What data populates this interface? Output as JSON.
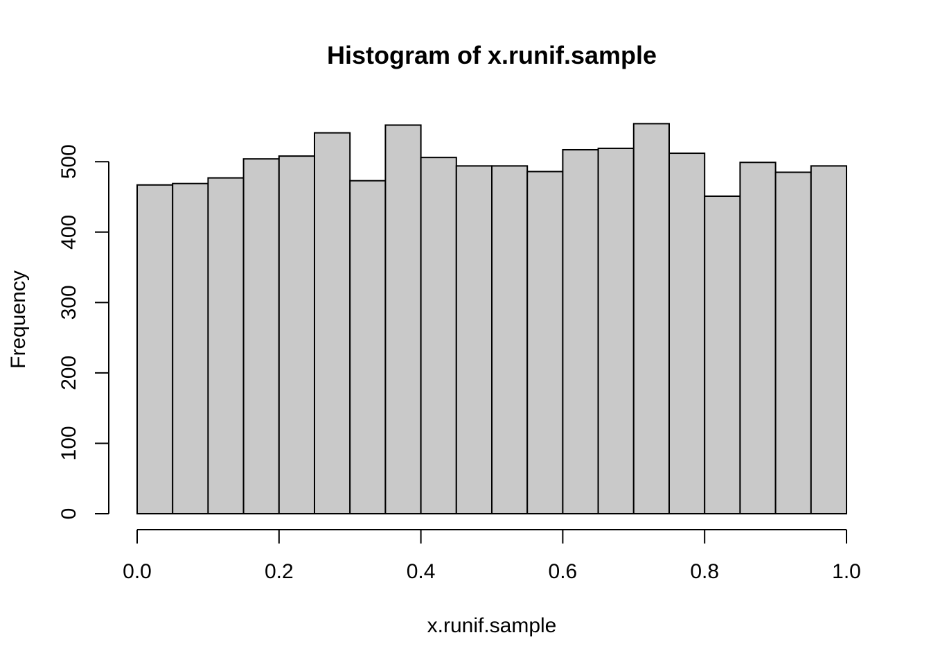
{
  "chart_data": {
    "type": "bar",
    "title": "Histogram of x.runif.sample",
    "xlabel": "x.runif.sample",
    "ylabel": "Frequency",
    "bin_edges": [
      0.0,
      0.05,
      0.1,
      0.15,
      0.2,
      0.25,
      0.3,
      0.35,
      0.4,
      0.45,
      0.5,
      0.55,
      0.6,
      0.65,
      0.7,
      0.75,
      0.8,
      0.85,
      0.9,
      0.95,
      1.0
    ],
    "values": [
      467,
      469,
      477,
      504,
      508,
      541,
      473,
      552,
      506,
      494,
      494,
      486,
      517,
      519,
      554,
      512,
      451,
      499,
      485,
      494
    ],
    "xlim": [
      0,
      1
    ],
    "ylim": [
      0,
      560
    ],
    "x_ticks": [
      0.0,
      0.2,
      0.4,
      0.6,
      0.8,
      1.0
    ],
    "x_tick_labels": [
      "0.0",
      "0.2",
      "0.4",
      "0.6",
      "0.8",
      "1.0"
    ],
    "y_ticks": [
      0,
      100,
      200,
      300,
      400,
      500
    ],
    "y_tick_labels": [
      "0",
      "100",
      "200",
      "300",
      "400",
      "500"
    ],
    "grid": false,
    "legend": "none",
    "colors": {
      "bar_fill": "#c9c9c9",
      "bar_stroke": "#000000",
      "axis": "#000000",
      "background": "#ffffff"
    }
  }
}
